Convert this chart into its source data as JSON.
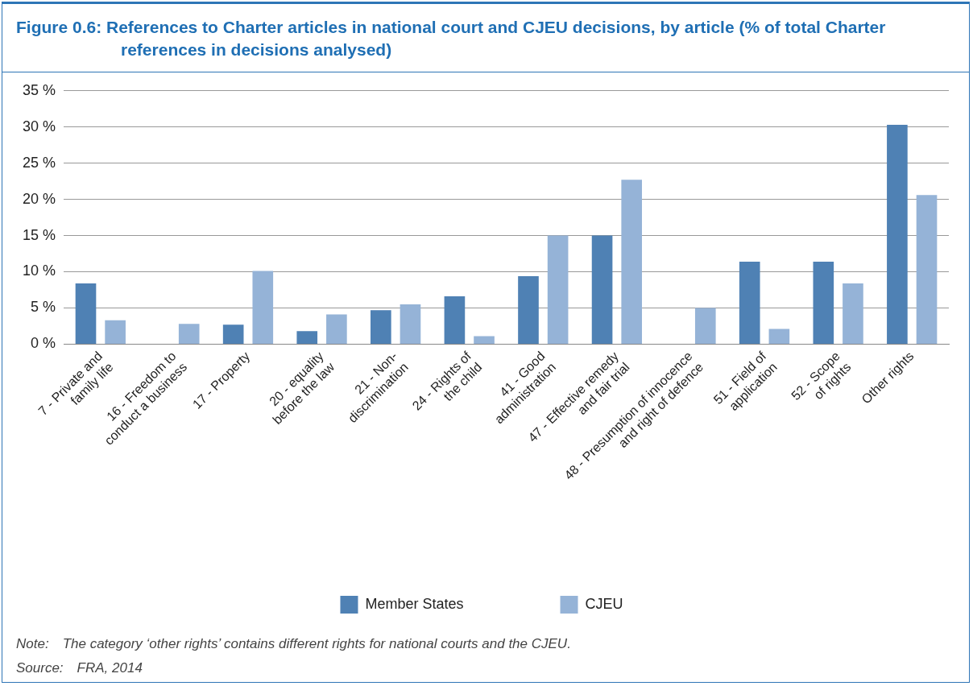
{
  "chart_data": {
    "type": "bar",
    "title": "Figure 0.6: References to Charter articles in national court and CJEU decisions, by article (% of total Charter references in decisions analysed)",
    "categories": [
      "7 - Private and\nfamily life",
      "16 - Freedom to\nconduct a business",
      "17 - Property",
      "20 - equality\nbefore the law",
      "21 - Non-\ndiscrimination",
      "24 - Rights of\nthe child",
      "41 - Good\nadministration",
      "47 - Effective remedy\nand fair trial",
      "48 - Presumption of innocence\nand right of defence",
      "51 - Field of\napplication",
      "52 - Scope\nof rights",
      "Other rights"
    ],
    "series": [
      {
        "name": "Member States",
        "color": "#4f81b4",
        "values": [
          8.4,
          null,
          2.7,
          1.8,
          4.7,
          6.6,
          9.4,
          15.0,
          null,
          11.4,
          11.4,
          30.3
        ]
      },
      {
        "name": "CJEU",
        "color": "#95b3d7",
        "values": [
          3.3,
          2.8,
          10.1,
          4.1,
          5.5,
          1.1,
          15.0,
          22.7,
          5.0,
          2.1,
          8.4,
          20.6
        ]
      }
    ],
    "ylim": [
      0,
      35
    ],
    "yticks": [
      {
        "value": 0,
        "label": "0 %"
      },
      {
        "value": 5,
        "label": "5 %"
      },
      {
        "value": 10,
        "label": "10 %"
      },
      {
        "value": 15,
        "label": "15 %"
      },
      {
        "value": 20,
        "label": "20 %"
      },
      {
        "value": 25,
        "label": "25 %"
      },
      {
        "value": 30,
        "label": "30 %"
      },
      {
        "value": 35,
        "label": "35 %"
      }
    ],
    "grid": "y",
    "legend": "bottom",
    "annotations": [
      "Note: The category ‘other rights’ contains different rights for national courts and the CJEU.",
      "Source: FRA, 2014"
    ]
  }
}
